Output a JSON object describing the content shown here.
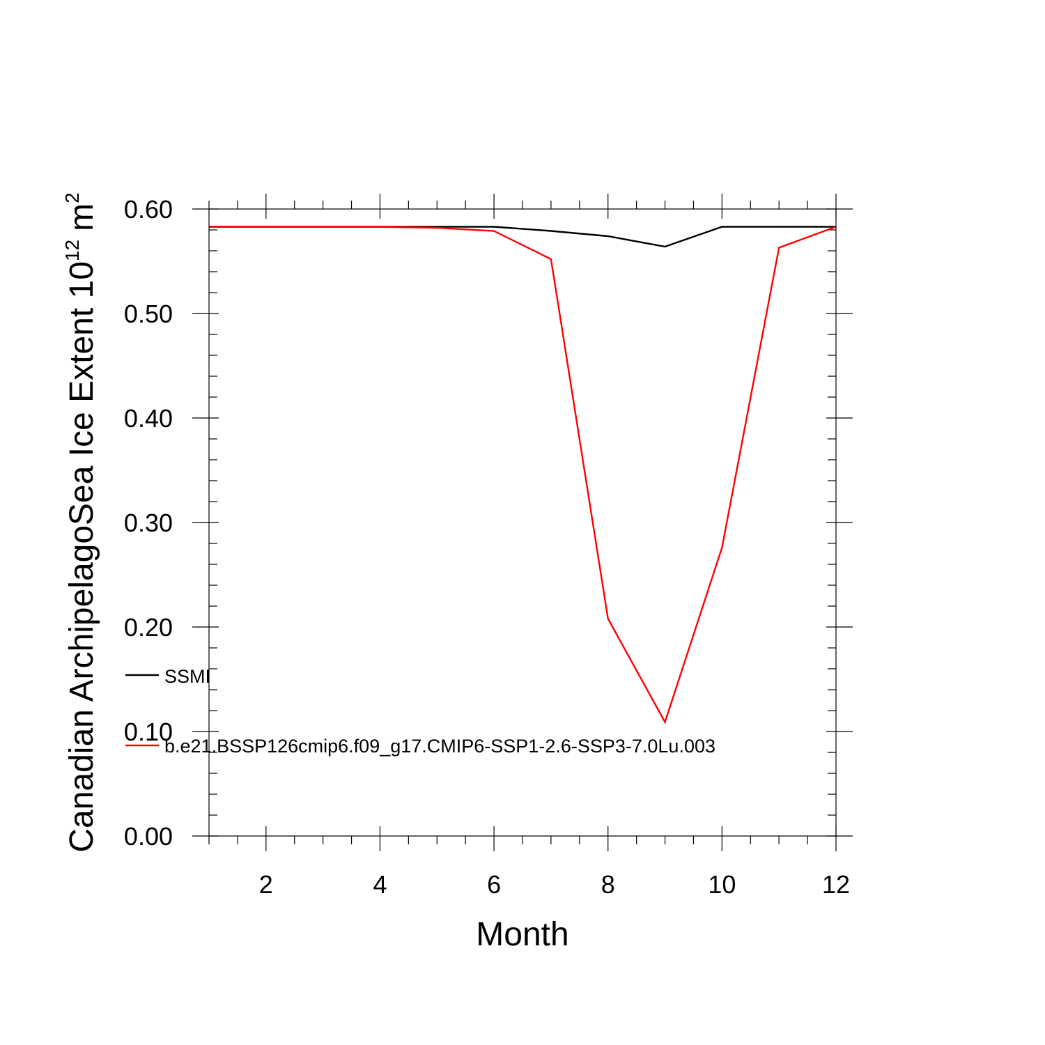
{
  "chart_data": {
    "type": "line",
    "title": "",
    "xlabel": "Month",
    "ylabel": "Canadian ArchipelagoSea Ice Extent 10",
    "ylabel_superscript": "12",
    "ylabel_unit": "m",
    "ylabel_unit_superscript": "2",
    "xlim": [
      1,
      12
    ],
    "ylim": [
      0.0,
      0.6
    ],
    "x_ticks": [
      2,
      4,
      6,
      8,
      10,
      12
    ],
    "x_tick_labels": [
      "2",
      "4",
      "6",
      "8",
      "10",
      "12"
    ],
    "y_ticks": [
      0.0,
      0.1,
      0.2,
      0.3,
      0.4,
      0.5,
      0.6
    ],
    "y_tick_labels": [
      "0.00",
      "0.10",
      "0.20",
      "0.30",
      "0.40",
      "0.50",
      "0.60"
    ],
    "grid": false,
    "legend_position": "left, inside plot",
    "x": [
      1,
      2,
      3,
      4,
      5,
      6,
      7,
      8,
      9,
      10,
      11,
      12
    ],
    "series": [
      {
        "name": "SSMI",
        "color": "#000000",
        "values": [
          0.583,
          0.583,
          0.583,
          0.583,
          0.583,
          0.583,
          0.579,
          0.574,
          0.564,
          0.583,
          0.583,
          0.583
        ]
      },
      {
        "name": "b.e21.BSSP126cmip6.f09_g17.CMIP6-SSP1-2.6-SSP3-7.0Lu.003",
        "color": "#ff0000",
        "values": [
          0.583,
          0.583,
          0.583,
          0.583,
          0.582,
          0.579,
          0.552,
          0.208,
          0.109,
          0.276,
          0.563,
          0.583
        ]
      }
    ]
  }
}
